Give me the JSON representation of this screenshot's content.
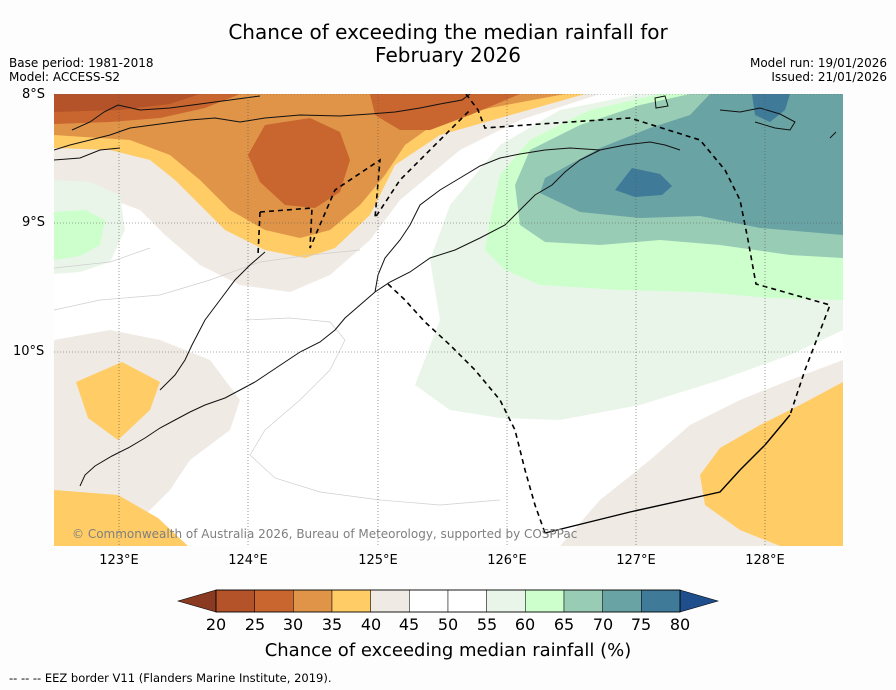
{
  "title_line1": "Chance of exceeding the median rainfall for",
  "title_line2": "February 2026",
  "base_period": "Base period: 1981-2018",
  "model": "Model: ACCESS-S2",
  "model_run": "Model run: 19/01/2026",
  "issued": "Issued: 21/01/2026",
  "map": {
    "lat_labels": [
      "8°S",
      "9°S",
      "10°S"
    ],
    "lon_labels": [
      "123°E",
      "124°E",
      "125°E",
      "126°E",
      "127°E",
      "128°E"
    ],
    "copyright": "© Commonwealth of Australia 2026, Bureau of Meteorology, supported by COSPPac"
  },
  "colorbar": {
    "ticks": [
      "20",
      "25",
      "30",
      "35",
      "40",
      "45",
      "50",
      "55",
      "60",
      "65",
      "70",
      "75",
      "80"
    ],
    "colors": [
      "#b4532a",
      "#c9652f",
      "#df9448",
      "#ffcc66",
      "#efeae4",
      "#ffffff",
      "#ffffff",
      "#eaf5e9",
      "#ccffcc",
      "#99ccb5",
      "#6aa3a3",
      "#3f7a99"
    ],
    "under_color": "#8b3a22",
    "over_color": "#1f4e8c",
    "label": "Chance of exceeding median rainfall (%)"
  },
  "footnote": "--  --  -- EEZ border V11 (Flanders Marine Institute, 2019)."
}
